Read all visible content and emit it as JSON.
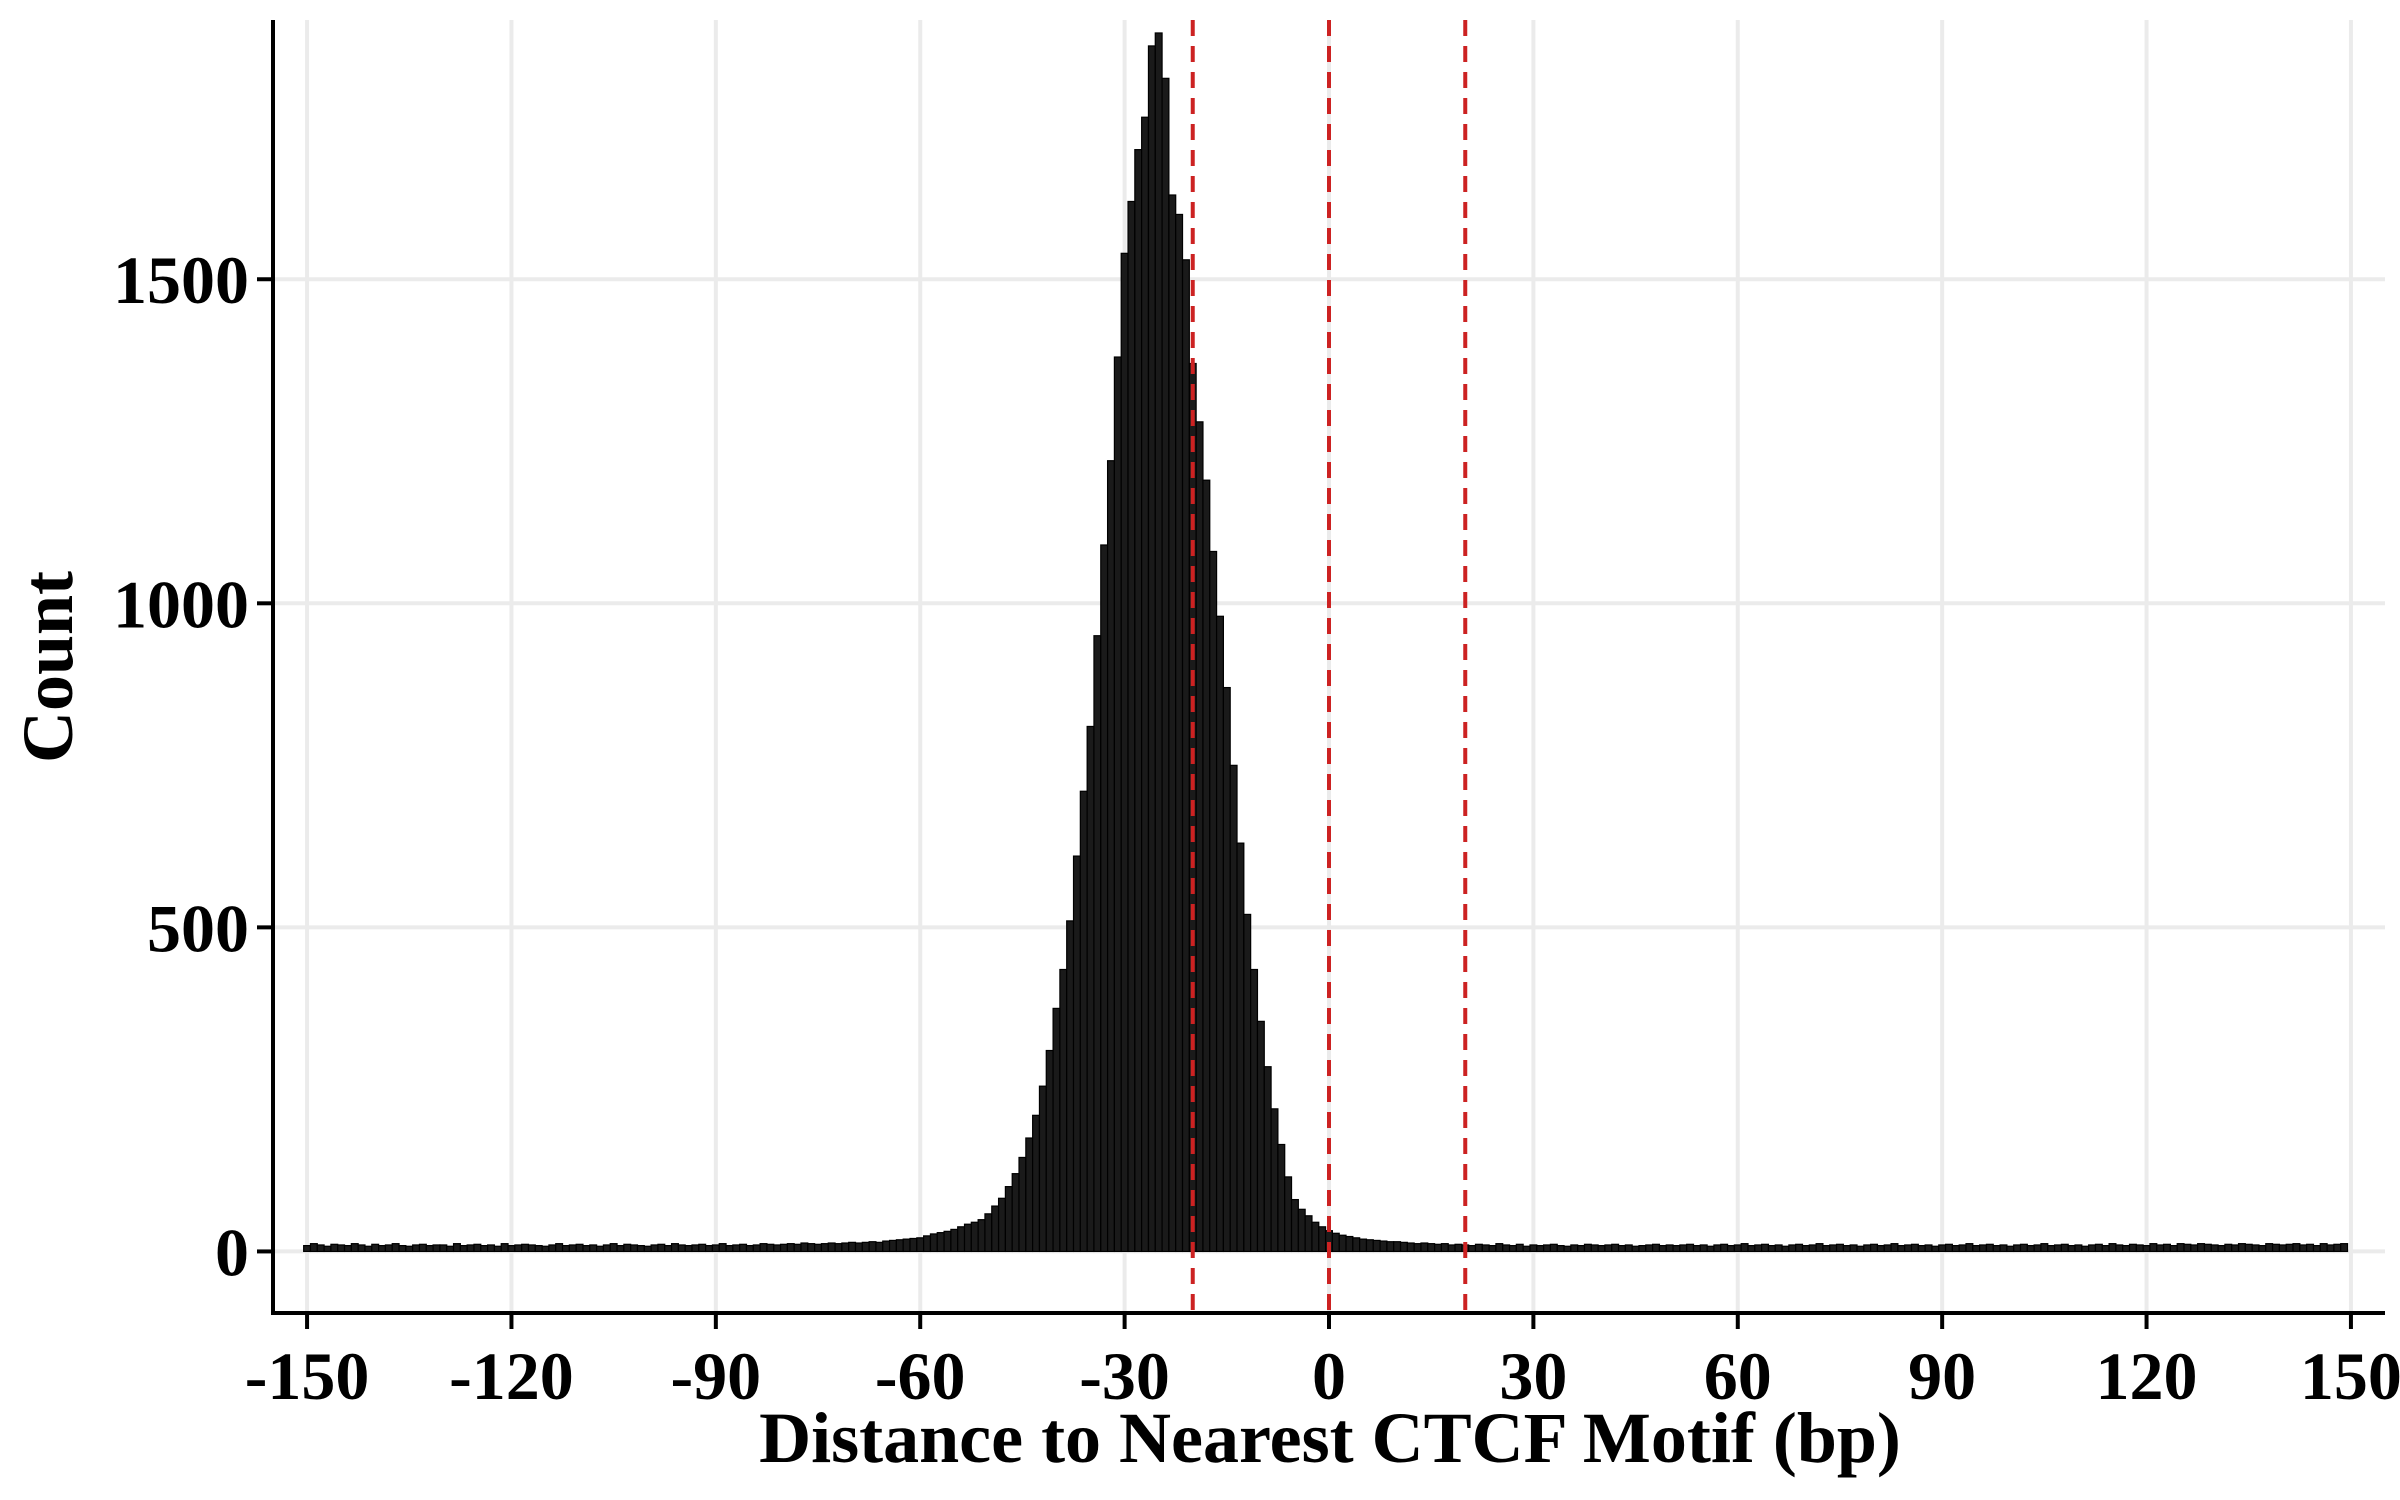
{
  "chart_data": {
    "type": "bar",
    "title": "",
    "xlabel": "Distance to Nearest CTCF Motif (bp)",
    "ylabel": "Count",
    "xlim": [
      -155,
      155
    ],
    "ylim": [
      -95,
      1900
    ],
    "x_ticks": [
      -150,
      -120,
      -90,
      -60,
      -30,
      0,
      30,
      60,
      90,
      120,
      150
    ],
    "x_tick_labels": [
      "-150",
      "-120",
      "-90",
      "-60",
      "-30",
      "0",
      "30",
      "60",
      "90",
      "120",
      "150"
    ],
    "y_ticks": [
      0,
      500,
      1000,
      1500
    ],
    "y_tick_labels": [
      "0",
      "500",
      "1000",
      "1500"
    ],
    "grid": true,
    "bar_fill": "#1a1a1a",
    "bar_edge": "#000000",
    "reference_lines": [
      {
        "x": -20,
        "style": "dashed",
        "color": "#cc2222"
      },
      {
        "x": 0,
        "style": "dashed",
        "color": "#cc2222"
      },
      {
        "x": 20,
        "style": "dashed",
        "color": "#cc2222"
      }
    ],
    "bins": {
      "x_start": -150,
      "width": 1,
      "counts": [
        9,
        12,
        10,
        8,
        11,
        10,
        9,
        12,
        10,
        8,
        11,
        9,
        10,
        12,
        9,
        8,
        10,
        11,
        9,
        10,
        10,
        8,
        12,
        9,
        10,
        11,
        9,
        10,
        8,
        12,
        9,
        10,
        11,
        10,
        9,
        8,
        10,
        12,
        9,
        10,
        11,
        9,
        10,
        8,
        10,
        12,
        9,
        11,
        10,
        9,
        8,
        10,
        11,
        9,
        12,
        10,
        9,
        10,
        11,
        9,
        10,
        12,
        9,
        10,
        11,
        9,
        10,
        12,
        11,
        10,
        11,
        12,
        11,
        13,
        12,
        11,
        12,
        13,
        12,
        13,
        14,
        13,
        14,
        15,
        14,
        16,
        17,
        18,
        19,
        20,
        21,
        24,
        27,
        29,
        31,
        34,
        38,
        42,
        45,
        49,
        58,
        70,
        82,
        100,
        120,
        145,
        175,
        210,
        255,
        310,
        375,
        435,
        510,
        610,
        710,
        810,
        950,
        1090,
        1220,
        1380,
        1540,
        1620,
        1700,
        1750,
        1860,
        1880,
        1810,
        1630,
        1600,
        1530,
        1370,
        1280,
        1190,
        1080,
        980,
        870,
        750,
        630,
        520,
        435,
        355,
        285,
        220,
        165,
        115,
        80,
        65,
        55,
        45,
        38,
        32,
        28,
        25,
        23,
        21,
        19,
        18,
        17,
        16,
        15,
        15,
        14,
        13,
        12,
        13,
        12,
        11,
        12,
        10,
        11,
        10,
        9,
        11,
        10,
        9,
        12,
        10,
        9,
        11,
        8,
        10,
        9,
        10,
        11,
        9,
        8,
        10,
        9,
        11,
        10,
        9,
        10,
        11,
        9,
        10,
        8,
        9,
        10,
        11,
        9,
        10,
        9,
        10,
        11,
        9,
        10,
        8,
        10,
        11,
        9,
        10,
        12,
        9,
        10,
        11,
        9,
        10,
        8,
        10,
        11,
        9,
        10,
        12,
        9,
        10,
        11,
        9,
        10,
        8,
        10,
        11,
        9,
        10,
        12,
        9,
        10,
        11,
        9,
        10,
        8,
        10,
        11,
        9,
        10,
        12,
        9,
        10,
        11,
        9,
        10,
        8,
        10,
        11,
        9,
        10,
        12,
        9,
        10,
        11,
        9,
        10,
        8,
        10,
        11,
        9,
        12,
        10,
        9,
        11,
        10,
        9,
        12,
        10,
        11,
        9,
        12,
        11,
        10,
        12,
        11,
        10,
        9,
        11,
        10,
        12,
        11,
        10,
        9,
        12,
        11,
        10,
        11,
        12,
        10,
        11,
        9,
        12,
        10,
        11,
        12
      ]
    }
  }
}
